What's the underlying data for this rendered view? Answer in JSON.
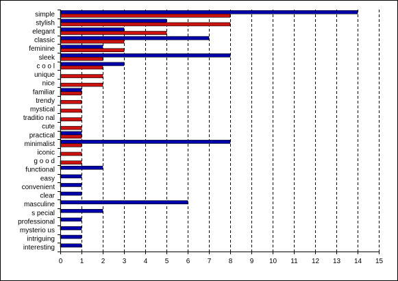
{
  "chart_data": {
    "type": "bar",
    "orientation": "horizontal",
    "categories": [
      "simple",
      "stylish",
      "elegant",
      "classic",
      "feminine",
      "sleek",
      "cool",
      "unique",
      "nice",
      "familiar",
      "trendy",
      "mystical",
      "traditional",
      "cute",
      "practical",
      "minimalist",
      "iconic",
      "good",
      "functional",
      "easy",
      "convenient",
      "clear",
      "masculine",
      "special",
      "professional",
      "mysterious",
      "intriguing",
      "interesting"
    ],
    "category_labels": [
      "simple",
      "stylish",
      "elegant",
      "classic",
      "feminine",
      "sleek",
      "c o o l",
      "unique",
      "nice",
      "familiar",
      "trendy",
      "mystical",
      "traditio nal",
      "cute",
      "practical",
      "minimalist",
      "iconic",
      "g o o d",
      "functional",
      "easy",
      "convenient",
      "clear",
      "masculine",
      "s pecial",
      "professional",
      "mysterio us",
      "intriguing",
      "interesting"
    ],
    "series": [
      {
        "values": [
          14,
          5,
          3,
          7,
          2,
          8,
          3,
          0,
          0,
          1,
          0,
          0,
          0,
          0,
          1,
          8,
          0,
          0,
          2,
          1,
          1,
          1,
          6,
          2,
          1,
          1,
          1,
          1
        ],
        "color": "#0000aa"
      },
      {
        "values": [
          8,
          8,
          5,
          3,
          3,
          2,
          2,
          2,
          2,
          1,
          1,
          1,
          1,
          1,
          1,
          1,
          1,
          1,
          0,
          0,
          0,
          0,
          0,
          0,
          0,
          0,
          0,
          0
        ],
        "color": "#cc1111"
      }
    ],
    "x_ticks": [
      "0",
      "1",
      "2",
      "3",
      "4",
      "5",
      "6",
      "7",
      "8",
      "9",
      "10",
      "11",
      "12",
      "13",
      "14",
      "15"
    ],
    "xlim": [
      0,
      15
    ],
    "grid": "vertical dashed",
    "title": "",
    "xlabel": "",
    "ylabel": ""
  }
}
